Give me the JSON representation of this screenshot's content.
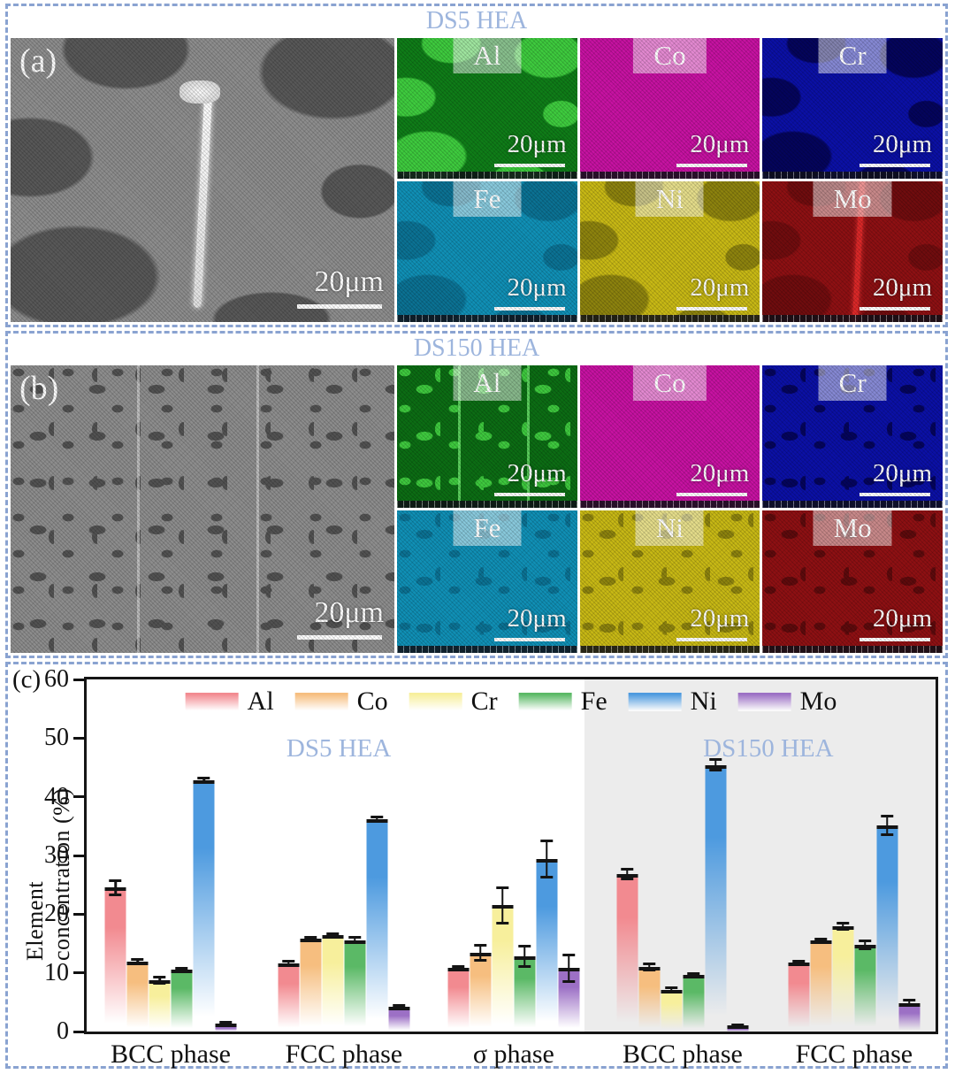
{
  "figure": {
    "panels": [
      {
        "label": "(a)",
        "title": "DS5 HEA",
        "scale_label": "20μm",
        "maps": [
          {
            "element": "Al"
          },
          {
            "element": "Co"
          },
          {
            "element": "Cr"
          },
          {
            "element": "Fe"
          },
          {
            "element": "Ni"
          },
          {
            "element": "Mo"
          }
        ]
      },
      {
        "label": "(b)",
        "title": "DS150 HEA",
        "scale_label": "20μm",
        "maps": [
          {
            "element": "Al"
          },
          {
            "element": "Co"
          },
          {
            "element": "Cr"
          },
          {
            "element": "Fe"
          },
          {
            "element": "Ni"
          },
          {
            "element": "Mo"
          }
        ]
      }
    ],
    "chart_label": "(c)"
  },
  "chart_data": {
    "type": "bar",
    "ylabel": "Element concentration (%)",
    "ylim": [
      0,
      60
    ],
    "yticks": [
      0,
      10,
      20,
      30,
      40,
      50,
      60
    ],
    "grid": false,
    "legend_position": "top-center-inside",
    "categories": [
      "BCC phase",
      "FCC phase",
      "σ phase",
      "BCC phase",
      "FCC phase"
    ],
    "group_centers_pct": [
      9.9,
      30.3,
      50.3,
      70.2,
      90.4
    ],
    "region_labels": [
      {
        "text": "DS5 HEA",
        "center_pct": 29.7,
        "background": "#ffffff"
      },
      {
        "text": "DS150 HEA",
        "center_pct": 80.3,
        "background": "#ececec"
      }
    ],
    "region_split_pct": 58.6,
    "series": [
      {
        "name": "Al",
        "color": "#f28a90",
        "values": [
          24.5,
          11.6,
          10.8,
          26.8,
          11.8
        ],
        "errors": [
          1.3,
          0.4,
          0.3,
          0.9,
          0.3
        ]
      },
      {
        "name": "Co",
        "color": "#f6be7f",
        "values": [
          11.9,
          15.8,
          13.4,
          11.0,
          15.5
        ],
        "errors": [
          0.4,
          0.3,
          1.4,
          0.6,
          0.3
        ]
      },
      {
        "name": "Cr",
        "color": "#f7ef9c",
        "values": [
          8.8,
          16.5,
          21.5,
          7.1,
          17.9
        ],
        "errors": [
          0.6,
          0.3,
          3.1,
          0.4,
          0.6
        ]
      },
      {
        "name": "Fe",
        "color": "#5bb966",
        "values": [
          10.5,
          15.6,
          12.8,
          9.6,
          14.8
        ],
        "errors": [
          0.3,
          0.5,
          1.8,
          0.3,
          0.8
        ]
      },
      {
        "name": "Ni",
        "color": "#4d9adf",
        "values": [
          42.8,
          36.2,
          29.4,
          45.4,
          35.1
        ],
        "errors": [
          0.4,
          0.5,
          3.1,
          1.0,
          1.7
        ]
      },
      {
        "name": "Mo",
        "color": "#9c70c5",
        "values": [
          1.4,
          4.2,
          10.8,
          1.0,
          4.9
        ],
        "errors": [
          0.3,
          0.4,
          2.3,
          0.2,
          0.5
        ]
      }
    ]
  }
}
